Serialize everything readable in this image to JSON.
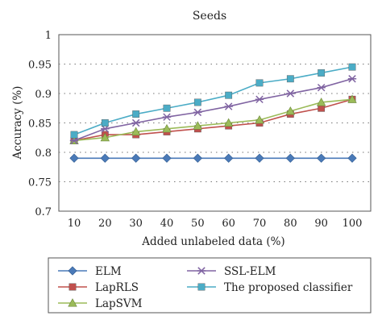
{
  "chart_data": {
    "type": "line",
    "title": "Seeds",
    "xlabel": "Added unlabeled data (%)",
    "ylabel": "Accuracy (%)",
    "x": [
      10,
      20,
      30,
      40,
      50,
      60,
      70,
      80,
      90,
      100
    ],
    "ylim": [
      0.7,
      1.0
    ],
    "yticks": [
      "0.7",
      "0.75",
      "0.8",
      "0.85",
      "0.9",
      "0.95",
      "1"
    ],
    "ytick_values": [
      0.7,
      0.75,
      0.8,
      0.85,
      0.9,
      0.95,
      1.0
    ],
    "grid": "horizontal dotted",
    "legend_placement": "bottom",
    "series": [
      {
        "name": "ELM",
        "marker": "diamond",
        "color": "#4a7ab8",
        "values": [
          0.79,
          0.79,
          0.79,
          0.79,
          0.79,
          0.79,
          0.79,
          0.79,
          0.79,
          0.79
        ]
      },
      {
        "name": "LapRLS",
        "marker": "square",
        "color": "#c0504d",
        "values": [
          0.82,
          0.83,
          0.83,
          0.835,
          0.84,
          0.845,
          0.85,
          0.865,
          0.875,
          0.89
        ]
      },
      {
        "name": "LapSVM",
        "marker": "triangle",
        "color": "#9bbb59",
        "values": [
          0.82,
          0.825,
          0.835,
          0.84,
          0.845,
          0.85,
          0.855,
          0.87,
          0.885,
          0.89
        ]
      },
      {
        "name": "SSL-ELM",
        "marker": "star",
        "color": "#8064a2",
        "values": [
          0.82,
          0.84,
          0.85,
          0.86,
          0.868,
          0.878,
          0.89,
          0.9,
          0.91,
          0.925
        ]
      },
      {
        "name": "The proposed classifier",
        "marker": "square",
        "color": "#4bacc6",
        "values": [
          0.83,
          0.85,
          0.865,
          0.875,
          0.885,
          0.897,
          0.918,
          0.925,
          0.935,
          0.945
        ]
      }
    ]
  }
}
